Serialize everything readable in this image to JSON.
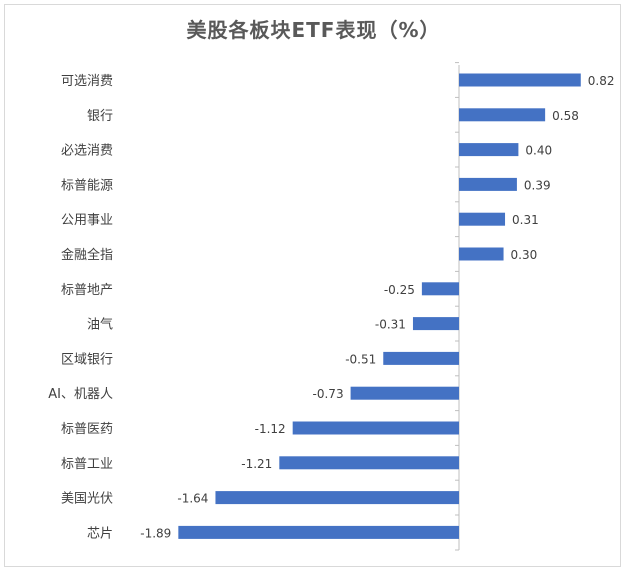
{
  "chart_data": {
    "type": "bar",
    "orientation": "horizontal",
    "title": "美股各板块ETF表现（%）",
    "xlabel": "",
    "ylabel": "",
    "categories": [
      "可选消费",
      "银行",
      "必选消费",
      "标普能源",
      "公用事业",
      "金融全指",
      "标普地产",
      "油气",
      "区域银行",
      "AI、机器人",
      "标普医药",
      "标普工业",
      "美国光伏",
      "芯片"
    ],
    "values": [
      0.82,
      0.58,
      0.4,
      0.39,
      0.31,
      0.3,
      -0.25,
      -0.31,
      -0.51,
      -0.73,
      -1.12,
      -1.21,
      -1.64,
      -1.89
    ],
    "value_labels": [
      "0.82",
      "0.58",
      "0.40",
      "0.39",
      "0.31",
      "0.30",
      "-0.25",
      "-0.31",
      "-0.51",
      "-0.73",
      "-1.12",
      "-1.21",
      "-1.64",
      "-1.89"
    ],
    "xlim": [
      -2.0,
      0.9
    ],
    "grid": false,
    "legend": "none",
    "bar_color": "#4472C4",
    "axis_color": "#bfbfbf"
  }
}
